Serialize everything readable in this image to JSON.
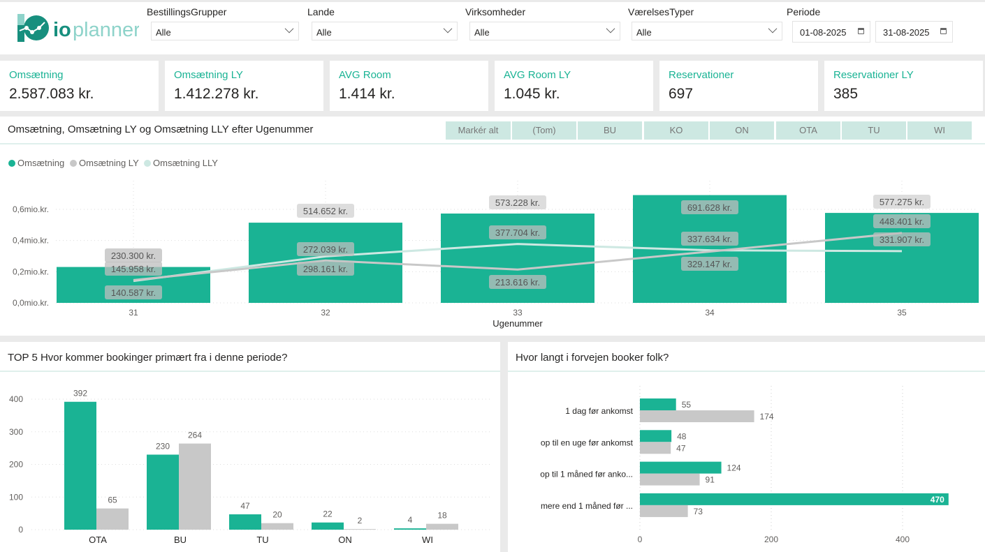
{
  "brand": {
    "logo_text": "ioplanner",
    "accent": "#1ab394",
    "ly_color": "#c8c8c8",
    "lly_color": "#cde8e2"
  },
  "filters": [
    {
      "label": "BestillingsGrupper",
      "value": "Alle"
    },
    {
      "label": "Lande",
      "value": "Alle"
    },
    {
      "label": "Virksomheder",
      "value": "Alle"
    },
    {
      "label": "VærelsesTyper",
      "value": "Alle"
    }
  ],
  "periode": {
    "label": "Periode",
    "from": "01-08-2025",
    "to": "31-08-2025"
  },
  "kpis": [
    {
      "title": "Omsætning",
      "value": "2.587.083 kr."
    },
    {
      "title": "Omsætning LY",
      "value": "1.412.278 kr."
    },
    {
      "title": "AVG Room",
      "value": "1.414 kr."
    },
    {
      "title": "AVG Room LY",
      "value": "1.045 kr."
    },
    {
      "title": "Reservationer",
      "value": "697"
    },
    {
      "title": "Reservationer LY",
      "value": "385"
    }
  ],
  "chips": [
    "Markér alt",
    "(Tom)",
    "BU",
    "KO",
    "ON",
    "OTA",
    "TU",
    "WI"
  ],
  "chart_data": [
    {
      "type": "bar+line",
      "title": "Omsætning, Omsætning LY og Omsætning LLY efter Ugenummer",
      "xlabel": "Ugenummer",
      "legend": "top-left",
      "categories": [
        "31",
        "32",
        "33",
        "34",
        "35"
      ],
      "yticks": [
        "0,0mio.kr.",
        "0,2mio.kr.",
        "0,4mio.kr.",
        "0,6mio.kr."
      ],
      "ylim": [
        0,
        0.8
      ],
      "series": [
        {
          "name": "Omsætning",
          "kind": "bar",
          "values": [
            230300,
            514652,
            573228,
            691628,
            577275
          ],
          "labels": [
            "230.300 kr.",
            "514.652 kr.",
            "573.228 kr.",
            "691.628 kr.",
            "577.275 kr."
          ]
        },
        {
          "name": "Omsætning LY",
          "kind": "line",
          "values": [
            145958,
            272039,
            213616,
            329147,
            448401
          ],
          "labels": [
            "145.958 kr.",
            "272.039 kr.",
            "213.616 kr.",
            "329.147 kr.",
            "448.401 kr."
          ]
        },
        {
          "name": "Omsætning LLY",
          "kind": "line",
          "values": [
            140587,
            298161,
            377704,
            337634,
            331907
          ],
          "labels": [
            "140.587 kr.",
            "298.161 kr.",
            "377.704 kr.",
            "337.634 kr.",
            "331.907 kr."
          ]
        }
      ]
    },
    {
      "type": "bar",
      "title": "TOP 5 Hvor kommer bookinger primært fra i denne periode?",
      "categories": [
        "OTA",
        "BU",
        "TU",
        "ON",
        "WI"
      ],
      "yticks": [
        "0",
        "100",
        "200",
        "300",
        "400"
      ],
      "ylim": [
        0,
        420
      ],
      "series": [
        {
          "values": [
            392,
            230,
            47,
            22,
            4
          ]
        },
        {
          "values": [
            65,
            264,
            20,
            2,
            18
          ]
        }
      ]
    },
    {
      "type": "hbar",
      "title": "Hvor langt i forvejen booker folk?",
      "categories": [
        "1 dag før ankomst",
        "op til en uge før ankomst",
        "op til 1 måned før anko...",
        "mere end 1 måned før ..."
      ],
      "xticks": [
        "0",
        "200",
        "400"
      ],
      "xlim": [
        0,
        470
      ],
      "series": [
        {
          "values": [
            55,
            48,
            124,
            470
          ]
        },
        {
          "values": [
            174,
            47,
            91,
            73
          ]
        }
      ]
    }
  ]
}
